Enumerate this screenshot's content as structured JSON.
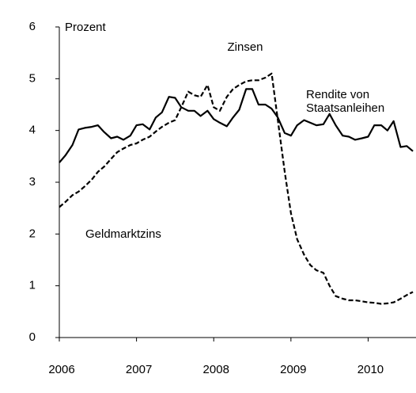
{
  "chart_data": {
    "type": "line",
    "title": "Zinsen",
    "y_label": "Prozent",
    "annotations": [
      "Rendite von",
      "Staatsanleihen",
      "Geldmarktzins"
    ],
    "x": [
      2006.0,
      2006.08,
      2006.17,
      2006.25,
      2006.33,
      2006.42,
      2006.5,
      2006.58,
      2006.67,
      2006.75,
      2006.83,
      2006.92,
      2007.0,
      2007.08,
      2007.17,
      2007.25,
      2007.33,
      2007.42,
      2007.5,
      2007.58,
      2007.67,
      2007.75,
      2007.83,
      2007.92,
      2008.0,
      2008.08,
      2008.17,
      2008.25,
      2008.33,
      2008.42,
      2008.5,
      2008.58,
      2008.67,
      2008.75,
      2008.83,
      2008.92,
      2009.0,
      2009.08,
      2009.17,
      2009.25,
      2009.33,
      2009.42,
      2009.5,
      2009.58,
      2009.67,
      2009.75,
      2009.83,
      2009.92,
      2010.0,
      2010.08,
      2010.17,
      2010.25,
      2010.33,
      2010.42,
      2010.5,
      2010.58
    ],
    "series": [
      {
        "color": "#000000",
        "dash": false,
        "values": [
          3.38,
          3.52,
          3.72,
          4.02,
          4.05,
          4.07,
          4.1,
          3.97,
          3.85,
          3.88,
          3.82,
          3.9,
          4.1,
          4.12,
          4.02,
          4.25,
          4.35,
          4.65,
          4.63,
          4.45,
          4.38,
          4.38,
          4.28,
          4.38,
          4.22,
          4.15,
          4.08,
          4.25,
          4.4,
          4.8,
          4.8,
          4.5,
          4.5,
          4.42,
          4.25,
          3.95,
          3.9,
          4.1,
          4.2,
          4.15,
          4.1,
          4.12,
          4.32,
          4.1,
          3.9,
          3.88,
          3.82,
          3.85,
          3.88,
          4.1,
          4.1,
          4.0,
          4.18,
          3.68,
          3.7,
          3.6
        ]
      },
      {
        "color": "#000000",
        "dash": true,
        "values": [
          2.52,
          2.62,
          2.75,
          2.82,
          2.92,
          3.05,
          3.2,
          3.3,
          3.45,
          3.58,
          3.65,
          3.72,
          3.75,
          3.82,
          3.88,
          3.98,
          4.07,
          4.15,
          4.2,
          4.45,
          4.75,
          4.68,
          4.65,
          4.88,
          4.45,
          4.38,
          4.65,
          4.8,
          4.88,
          4.95,
          4.97,
          4.97,
          5.02,
          5.1,
          4.2,
          3.2,
          2.4,
          1.9,
          1.6,
          1.4,
          1.3,
          1.25,
          1.0,
          0.8,
          0.75,
          0.72,
          0.72,
          0.7,
          0.68,
          0.67,
          0.65,
          0.66,
          0.68,
          0.75,
          0.82,
          0.88
        ]
      }
    ],
    "xlim": [
      2006,
      2010.62
    ],
    "xticks": [
      2006,
      2007,
      2008,
      2009,
      2010
    ],
    "ylim": [
      0,
      6
    ],
    "yticks": [
      0,
      1,
      2,
      3,
      4,
      5,
      6
    ],
    "grid": false
  }
}
